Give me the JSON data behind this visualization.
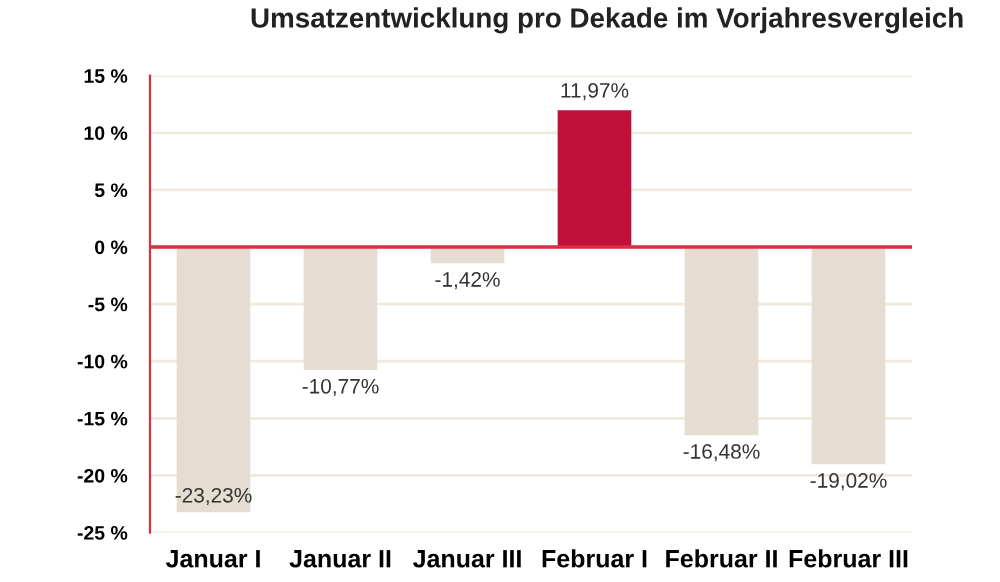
{
  "chart_data": {
    "type": "bar",
    "title": "Umsatzentwicklung pro Dekade im Vorjahresvergleich",
    "categories": [
      "Januar I",
      "Januar II",
      "Januar III",
      "Februar I",
      "Februar II",
      "Februar III"
    ],
    "values": [
      -23.23,
      -10.77,
      -1.42,
      11.97,
      -16.48,
      -19.02
    ],
    "colors": [
      "#e6ddd2",
      "#e6ddd2",
      "#e6ddd2",
      "#c0103a",
      "#e6ddd2",
      "#e6ddd2"
    ],
    "value_labels": [
      "-23,23%",
      "-10,77%",
      "-1,42%",
      "11,97%",
      "-16,48%",
      "-19,02%"
    ],
    "ylim": [
      -25,
      15
    ],
    "yticks": [
      {
        "value": -25,
        "label": "-25 %"
      },
      {
        "value": -20,
        "label": "-20 %"
      },
      {
        "value": -15,
        "label": "-15 %"
      },
      {
        "value": -10,
        "label": "-10 %"
      },
      {
        "value": -5,
        "label": "-5 %"
      },
      {
        "value": 0,
        "label": "0 %"
      },
      {
        "value": 5,
        "label": "5 %"
      },
      {
        "value": 10,
        "label": "10 %"
      },
      {
        "value": 15,
        "label": "15 %"
      }
    ],
    "ref_lines": [
      {
        "axis": "y",
        "value": 0,
        "color": "#d9303f"
      }
    ],
    "grid": "y"
  }
}
